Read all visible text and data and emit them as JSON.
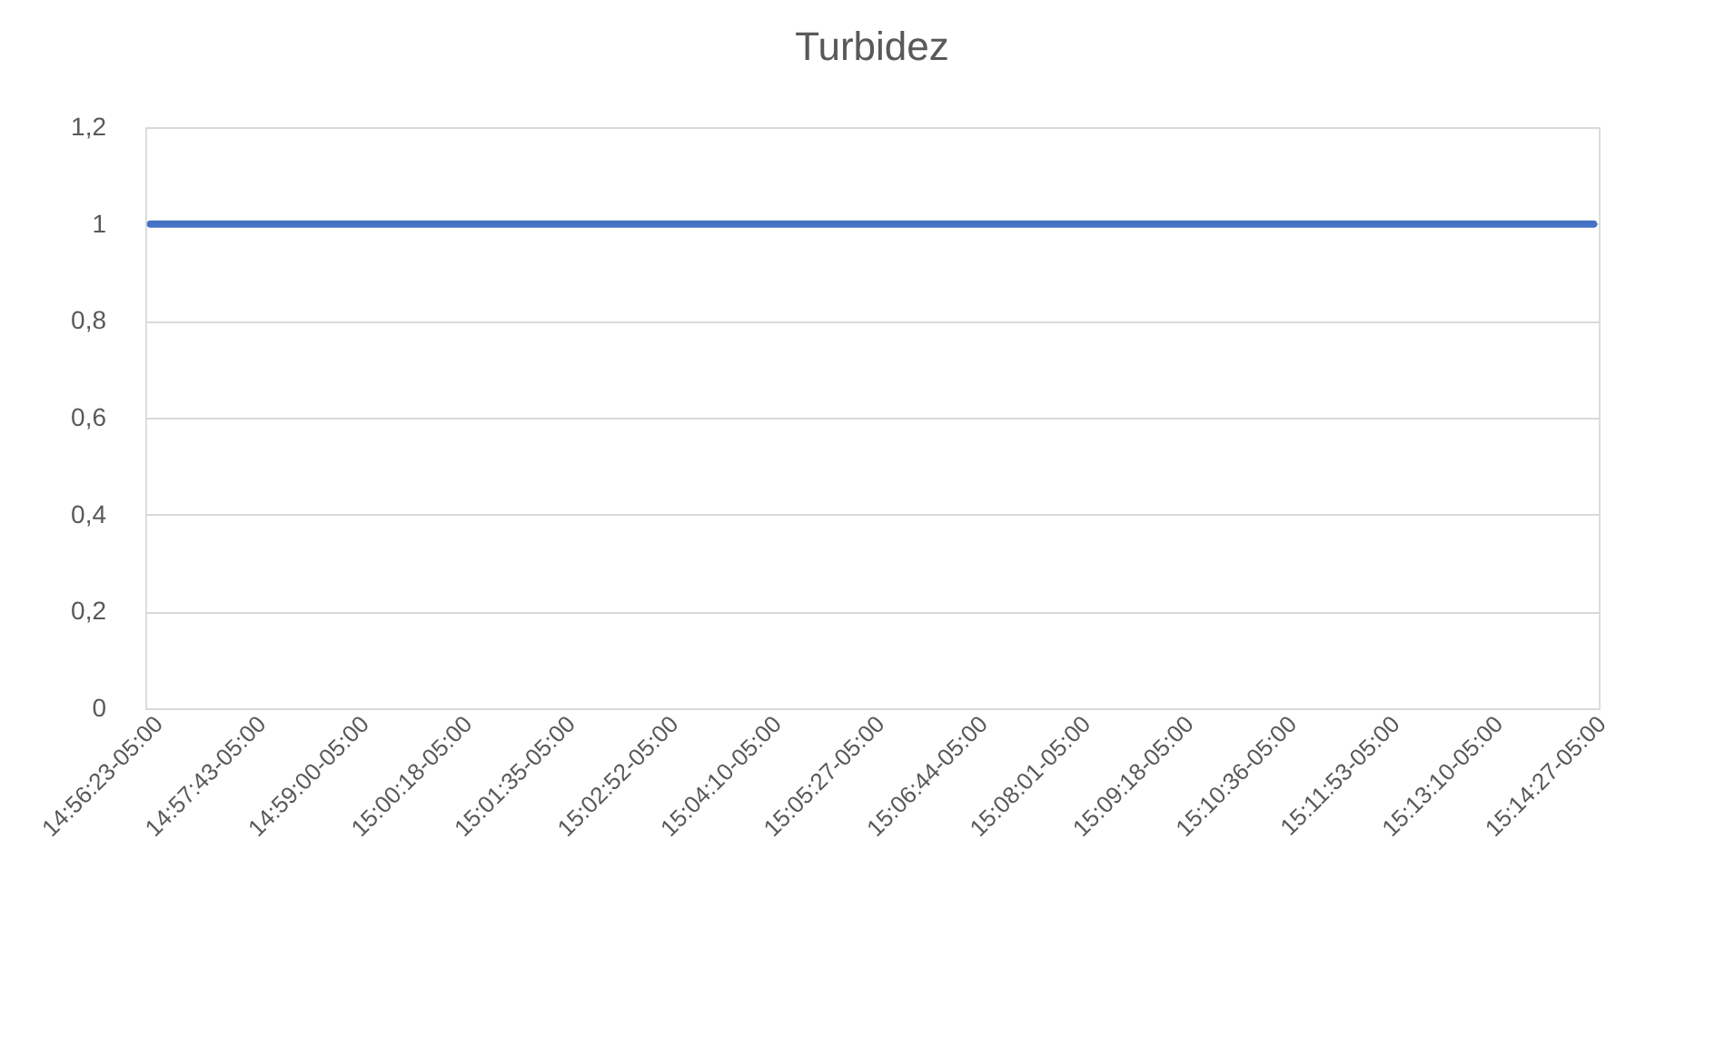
{
  "chart_data": {
    "type": "line",
    "title": "Turbidez",
    "categories": [
      "14:56:23-05:00",
      "14:57:43-05:00",
      "14:59:00-05:00",
      "15:00:18-05:00",
      "15:01:35-05:00",
      "15:02:52-05:00",
      "15:04:10-05:00",
      "15:05:27-05:00",
      "15:06:44-05:00",
      "15:08:01-05:00",
      "15:09:18-05:00",
      "15:10:36-05:00",
      "15:11:53-05:00",
      "15:13:10-05:00",
      "15:14:27-05:00"
    ],
    "series": [
      {
        "color": "#4472c4",
        "values": [
          1,
          1,
          1,
          1,
          1,
          1,
          1,
          1,
          1,
          1,
          1,
          1,
          1,
          1,
          1
        ]
      }
    ],
    "ylim": [
      0,
      1.2
    ],
    "yticks": [
      0,
      {
        "value": 0.2,
        "label": "0,2"
      },
      {
        "value": 0.4,
        "label": "0,4"
      },
      {
        "value": 0.6,
        "label": "0,6"
      },
      {
        "value": 0.8,
        "label": "0,8"
      },
      1,
      {
        "value": 1.2,
        "label": "1,2"
      }
    ],
    "grid": "y"
  }
}
